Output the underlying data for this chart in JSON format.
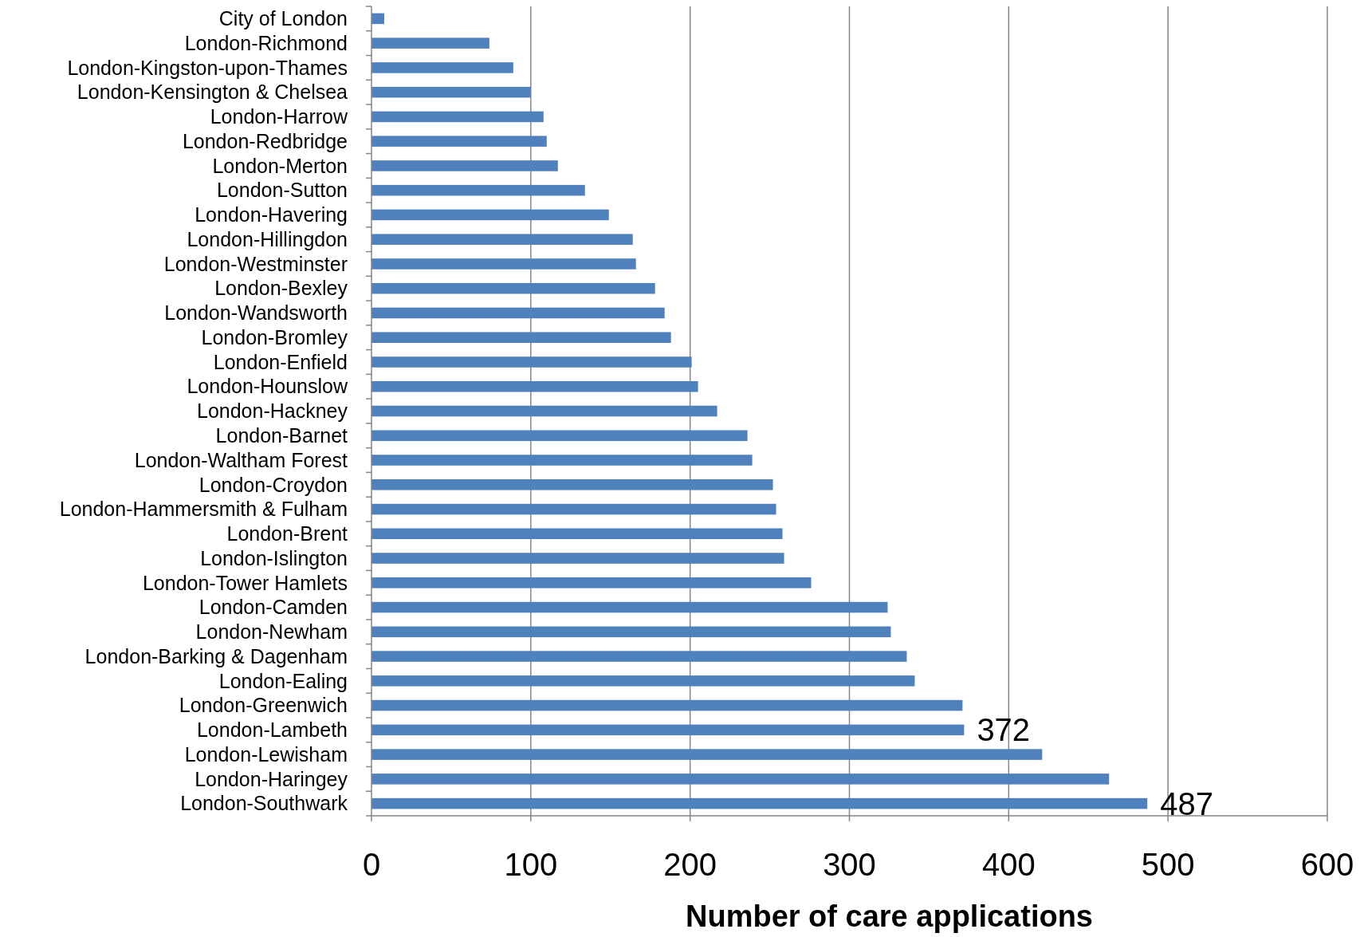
{
  "chart_data": {
    "type": "bar",
    "orientation": "horizontal",
    "xlabel": "Number of care applications",
    "categories": [
      "City of London",
      "London-Richmond",
      "London-Kingston-upon-Thames",
      "London-Kensington & Chelsea",
      "London-Harrow",
      "London-Redbridge",
      "London-Merton",
      "London-Sutton",
      "London-Havering",
      "London-Hillingdon",
      "London-Westminster",
      "London-Bexley",
      "London-Wandsworth",
      "London-Bromley",
      "London-Enfield",
      "London-Hounslow",
      "London-Hackney",
      "London-Barnet",
      "London-Waltham Forest",
      "London-Croydon",
      "London-Hammersmith & Fulham",
      "London-Brent",
      "London-Islington",
      "London-Tower Hamlets",
      "London-Camden",
      "London-Newham",
      "London-Barking & Dagenham",
      "London-Ealing",
      "London-Greenwich",
      "London-Lambeth",
      "London-Lewisham",
      "London-Haringey",
      "London-Southwark"
    ],
    "values": [
      8,
      74,
      89,
      100,
      108,
      110,
      117,
      134,
      149,
      164,
      166,
      178,
      184,
      188,
      201,
      205,
      217,
      236,
      239,
      252,
      254,
      258,
      259,
      276,
      324,
      326,
      336,
      341,
      371,
      372,
      421,
      463,
      487
    ],
    "value_labels": [
      null,
      null,
      null,
      null,
      null,
      null,
      null,
      null,
      null,
      null,
      null,
      null,
      null,
      null,
      null,
      null,
      null,
      null,
      null,
      null,
      null,
      null,
      null,
      null,
      null,
      null,
      null,
      null,
      null,
      "372",
      null,
      null,
      "487"
    ],
    "color": "#4f81bd",
    "xlim": [
      0,
      600
    ],
    "xticks": [
      0,
      100,
      200,
      300,
      400,
      500,
      600
    ],
    "grid": "x"
  }
}
